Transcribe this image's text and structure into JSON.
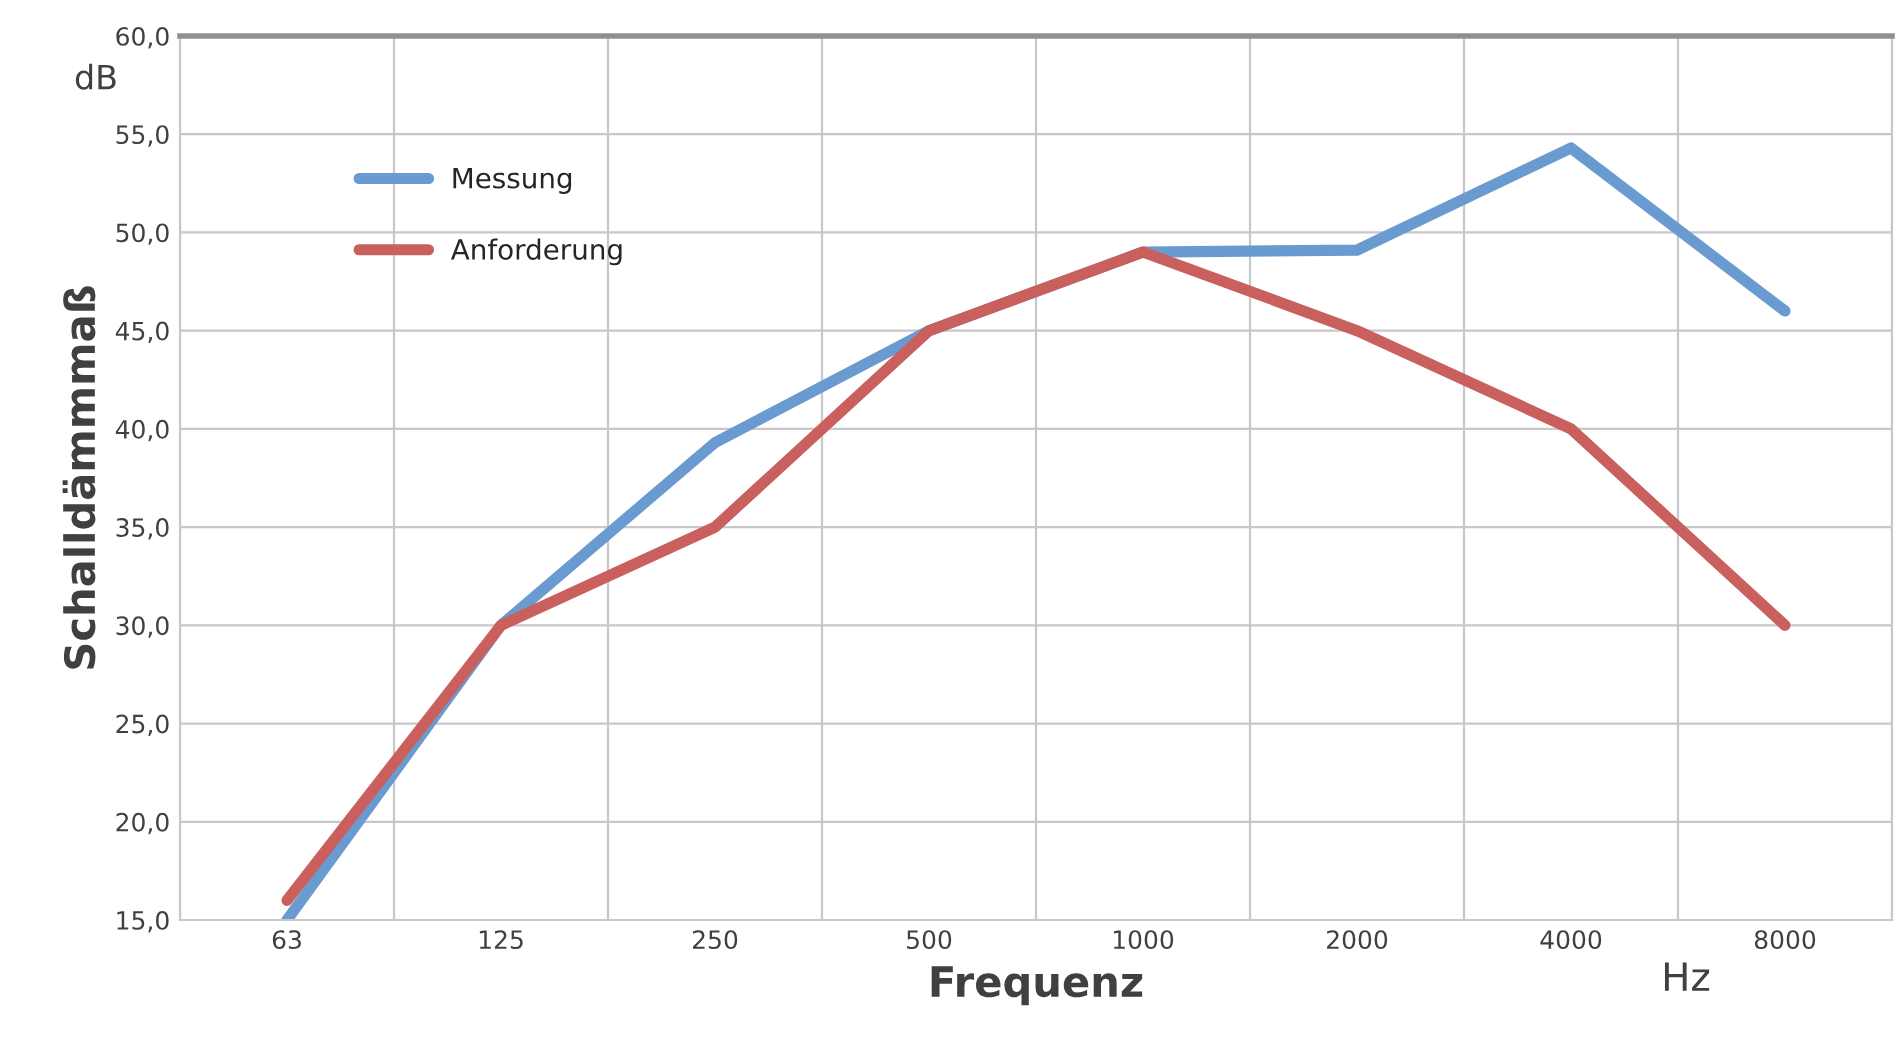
{
  "chart_data": {
    "type": "line",
    "xlabel": "Frequenz",
    "ylabel": "Schalldämmmaß",
    "categories": [
      "63",
      "125",
      "250",
      "500",
      "1000",
      "2000",
      "4000",
      "8000"
    ],
    "series": [
      {
        "name": "Messung",
        "color": "#6a9bd0",
        "values": [
          15,
          30,
          39.3,
          45,
          49,
          49.1,
          54.3,
          46
        ]
      },
      {
        "name": "Anforderung",
        "color": "#c9605e",
        "values": [
          16,
          30,
          35,
          45,
          49,
          45,
          40,
          30
        ]
      }
    ],
    "ylim": [
      15,
      60
    ],
    "yticks": [
      {
        "value": 15,
        "label": "15,0"
      },
      {
        "value": 20,
        "label": "20,0"
      },
      {
        "value": 25,
        "label": "25,0"
      },
      {
        "value": 30,
        "label": "30,0"
      },
      {
        "value": 35,
        "label": "35,0"
      },
      {
        "value": 40,
        "label": "40,0"
      },
      {
        "value": 45,
        "label": "45,0"
      },
      {
        "value": 50,
        "label": "50,0"
      },
      {
        "value": 55,
        "label": "55,0"
      },
      {
        "value": 60,
        "label": "60,0"
      }
    ],
    "annotations": [
      "dB",
      "Hz"
    ],
    "grid": true,
    "legend": "top left",
    "marker": "none",
    "line_style": "solid"
  }
}
